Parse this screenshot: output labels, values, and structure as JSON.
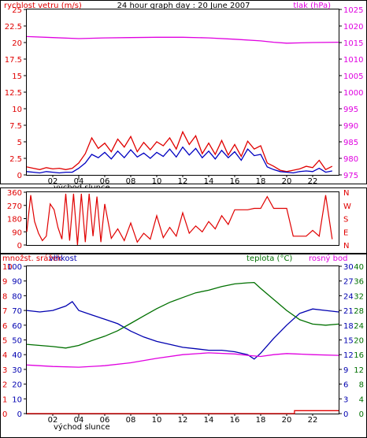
{
  "chart_data": [
    {
      "type": "line",
      "title": "24 hour graph day : 20 June 2007",
      "left_axis_label": "rychlost vetru (m/s)",
      "right_axis_label": "tlak (hPa)",
      "xlim": [
        0,
        24
      ],
      "x_ticks": [
        "02",
        "04",
        "06",
        "08",
        "10",
        "12",
        "14",
        "16",
        "18",
        "20",
        "22"
      ],
      "sunrise_label": "východ slunce",
      "sunrise_hour": 4,
      "ylim_left": [
        0,
        25
      ],
      "y_ticks_left": [
        "0",
        "2.5",
        "5",
        "7.5",
        "10",
        "12.5",
        "15",
        "17.5",
        "20",
        "22.5",
        "25"
      ],
      "ylim_right": [
        975,
        1025
      ],
      "y_ticks_right": [
        "975",
        "980",
        "985",
        "990",
        "995",
        "1000",
        "1005",
        "1010",
        "1015",
        "1020",
        "1025"
      ],
      "grid": false,
      "series": [
        {
          "key": "gust",
          "color": "#e00000",
          "axis": "left",
          "x": [
            0.0,
            0.5,
            1.0,
            1.5,
            2.0,
            2.5,
            3.0,
            3.5,
            4.0,
            4.5,
            5.0,
            5.5,
            6.0,
            6.5,
            7.0,
            7.5,
            8.0,
            8.5,
            9.0,
            9.5,
            10.0,
            10.5,
            11.0,
            11.5,
            12.0,
            12.5,
            13.0,
            13.5,
            14.0,
            14.5,
            15.0,
            15.5,
            16.0,
            16.5,
            17.0,
            17.5,
            18.0,
            18.5,
            19.0,
            19.5,
            20.0,
            20.5,
            21.0,
            21.5,
            22.0,
            22.5,
            23.0,
            23.5
          ],
          "values": [
            1.2,
            1.0,
            0.8,
            1.1,
            0.9,
            1.0,
            0.8,
            1.0,
            1.8,
            3.2,
            5.6,
            4.0,
            4.8,
            3.5,
            5.4,
            4.2,
            5.8,
            3.5,
            4.9,
            3.8,
            5.0,
            4.4,
            5.6,
            3.9,
            6.5,
            4.6,
            5.9,
            3.2,
            4.8,
            3.1,
            5.2,
            3.0,
            4.6,
            2.8,
            5.1,
            3.9,
            4.4,
            1.8,
            1.3,
            0.7,
            0.5,
            0.7,
            0.9,
            1.3,
            1.1,
            2.2,
            0.8,
            1.3
          ]
        },
        {
          "key": "wind_speed",
          "color": "#0000c0",
          "axis": "left",
          "x": [
            0.0,
            0.5,
            1.0,
            1.5,
            2.0,
            2.5,
            3.0,
            3.5,
            4.0,
            4.5,
            5.0,
            5.5,
            6.0,
            6.5,
            7.0,
            7.5,
            8.0,
            8.5,
            9.0,
            9.5,
            10.0,
            10.5,
            11.0,
            11.5,
            12.0,
            12.5,
            13.0,
            13.5,
            14.0,
            14.5,
            15.0,
            15.5,
            16.0,
            16.5,
            17.0,
            17.5,
            18.0,
            18.5,
            19.0,
            19.5,
            20.0,
            20.5,
            21.0,
            21.5,
            22.0,
            22.5,
            23.0,
            23.5
          ],
          "values": [
            0.5,
            0.4,
            0.3,
            0.5,
            0.4,
            0.3,
            0.4,
            0.4,
            1.0,
            1.8,
            3.1,
            2.6,
            3.4,
            2.4,
            3.6,
            2.6,
            3.8,
            2.7,
            3.3,
            2.5,
            3.4,
            2.8,
            3.9,
            2.7,
            4.2,
            3.0,
            4.0,
            2.6,
            3.6,
            2.4,
            3.7,
            2.6,
            3.5,
            2.2,
            3.9,
            2.9,
            3.1,
            1.2,
            0.8,
            0.5,
            0.4,
            0.3,
            0.5,
            0.6,
            0.5,
            1.0,
            0.4,
            0.6
          ]
        },
        {
          "key": "pressure",
          "color": "#e000e0",
          "axis": "right",
          "x": [
            0,
            2,
            4,
            6,
            8,
            10,
            12,
            14,
            16,
            18,
            19,
            20,
            22,
            24
          ],
          "values": [
            1016.8,
            1016.5,
            1016.2,
            1016.4,
            1016.5,
            1016.6,
            1016.6,
            1016.4,
            1016.0,
            1015.5,
            1015.1,
            1014.8,
            1015.0,
            1015.1
          ]
        }
      ]
    },
    {
      "type": "line",
      "xlim": [
        0,
        24
      ],
      "ylim": [
        0,
        360
      ],
      "y_ticks_left": [
        "0",
        "90",
        "180",
        "270",
        "360"
      ],
      "y_ticks_right": [
        "N",
        "E",
        "S",
        "W",
        "N"
      ],
      "series": [
        {
          "key": "wind_direction",
          "color": "#e00000",
          "x": [
            0.0,
            0.3,
            0.6,
            0.9,
            1.2,
            1.5,
            1.8,
            2.1,
            2.4,
            2.7,
            3.0,
            3.3,
            3.6,
            3.9,
            4.2,
            4.5,
            4.8,
            5.1,
            5.4,
            5.7,
            6.0,
            6.5,
            7.0,
            7.5,
            8.0,
            8.5,
            9.0,
            9.5,
            10.0,
            10.5,
            11.0,
            11.5,
            12.0,
            12.5,
            13.0,
            13.5,
            14.0,
            14.5,
            15.0,
            15.5,
            16.0,
            16.5,
            17.0,
            17.5,
            18.0,
            18.5,
            19.0,
            19.5,
            20.0,
            20.5,
            21.0,
            21.5,
            22.0,
            22.5,
            23.0,
            23.5
          ],
          "values": [
            90,
            340,
            160,
            80,
            30,
            60,
            280,
            240,
            120,
            40,
            350,
            30,
            350,
            0,
            350,
            20,
            350,
            60,
            330,
            20,
            280,
            45,
            110,
            30,
            150,
            20,
            80,
            40,
            200,
            50,
            120,
            60,
            220,
            80,
            130,
            90,
            160,
            110,
            200,
            140,
            240,
            240,
            240,
            250,
            250,
            330,
            250,
            250,
            250,
            60,
            60,
            60,
            100,
            60,
            340,
            40
          ]
        }
      ]
    },
    {
      "type": "line",
      "xlim": [
        0,
        24
      ],
      "x_ticks": [
        "02",
        "04",
        "06",
        "08",
        "10",
        "12",
        "14",
        "16",
        "18",
        "20",
        "22"
      ],
      "sunrise_label": "východ slunce",
      "precip_label": "množst. srážek",
      "humidity_label": "vlhkost",
      "temp_label": "teplota (°C)",
      "dew_label": "rosný bod",
      "ylim_precip": [
        0,
        10
      ],
      "y_ticks_precip": [
        "0",
        "1",
        "2",
        "3",
        "4",
        "5",
        "6",
        "7",
        "8",
        "9",
        "10"
      ],
      "ylim_humidity": [
        0,
        100
      ],
      "y_ticks_humidity": [
        "0",
        "10",
        "20",
        "30",
        "40",
        "50",
        "60",
        "70",
        "80",
        "90",
        "100"
      ],
      "ylim_temp": [
        0,
        40
      ],
      "y_ticks_temp": [
        "0",
        "4",
        "8",
        "12",
        "16",
        "20",
        "24",
        "28",
        "32",
        "36",
        "40"
      ],
      "y_ticks_humidity_right": [
        "0",
        "3",
        "6",
        "9",
        "12",
        "15",
        "18",
        "21",
        "24",
        "27",
        "30"
      ],
      "series": [
        {
          "key": "humidity",
          "color": "#0000b0",
          "axis": "humidity",
          "x": [
            0,
            1,
            2,
            3,
            3.5,
            4,
            5,
            6,
            7,
            8,
            9,
            10,
            11,
            12,
            13,
            14,
            15,
            16,
            17,
            17.5,
            18,
            19,
            20,
            21,
            22,
            23,
            24
          ],
          "values": [
            70,
            69,
            70,
            73,
            76,
            70,
            67,
            64,
            61,
            56,
            52,
            49,
            47,
            45,
            44,
            43,
            43,
            42,
            40,
            37,
            41,
            51,
            60,
            68,
            71,
            70,
            69
          ]
        },
        {
          "key": "temperature",
          "color": "#007000",
          "axis": "temp",
          "x": [
            0,
            1,
            2,
            3,
            4,
            5,
            6,
            7,
            8,
            9,
            10,
            11,
            12,
            13,
            14,
            15,
            16,
            17,
            17.5,
            18,
            19,
            20,
            21,
            22,
            23,
            24
          ],
          "values": [
            18.8,
            18.5,
            18.2,
            17.8,
            18.5,
            19.8,
            21.0,
            22.5,
            24.5,
            26.5,
            28.5,
            30.2,
            31.5,
            32.8,
            33.5,
            34.5,
            35.2,
            35.5,
            35.6,
            34.0,
            31.0,
            28.0,
            25.5,
            24.3,
            24.0,
            24.3
          ]
        },
        {
          "key": "dew_point",
          "color": "#e000e0",
          "axis": "temp",
          "x": [
            0,
            2,
            4,
            6,
            8,
            10,
            12,
            14,
            16,
            17,
            18,
            19,
            20,
            22,
            24
          ],
          "values": [
            13.2,
            12.8,
            12.6,
            13.0,
            13.8,
            15.0,
            16.0,
            16.5,
            16.2,
            15.8,
            15.5,
            16.0,
            16.3,
            16.0,
            15.8
          ]
        },
        {
          "key": "precipitation",
          "color": "#e00000",
          "axis": "precip",
          "x": [
            0,
            20.6,
            20.6,
            24
          ],
          "values": [
            0,
            0,
            0.2,
            0.2
          ]
        }
      ]
    }
  ]
}
